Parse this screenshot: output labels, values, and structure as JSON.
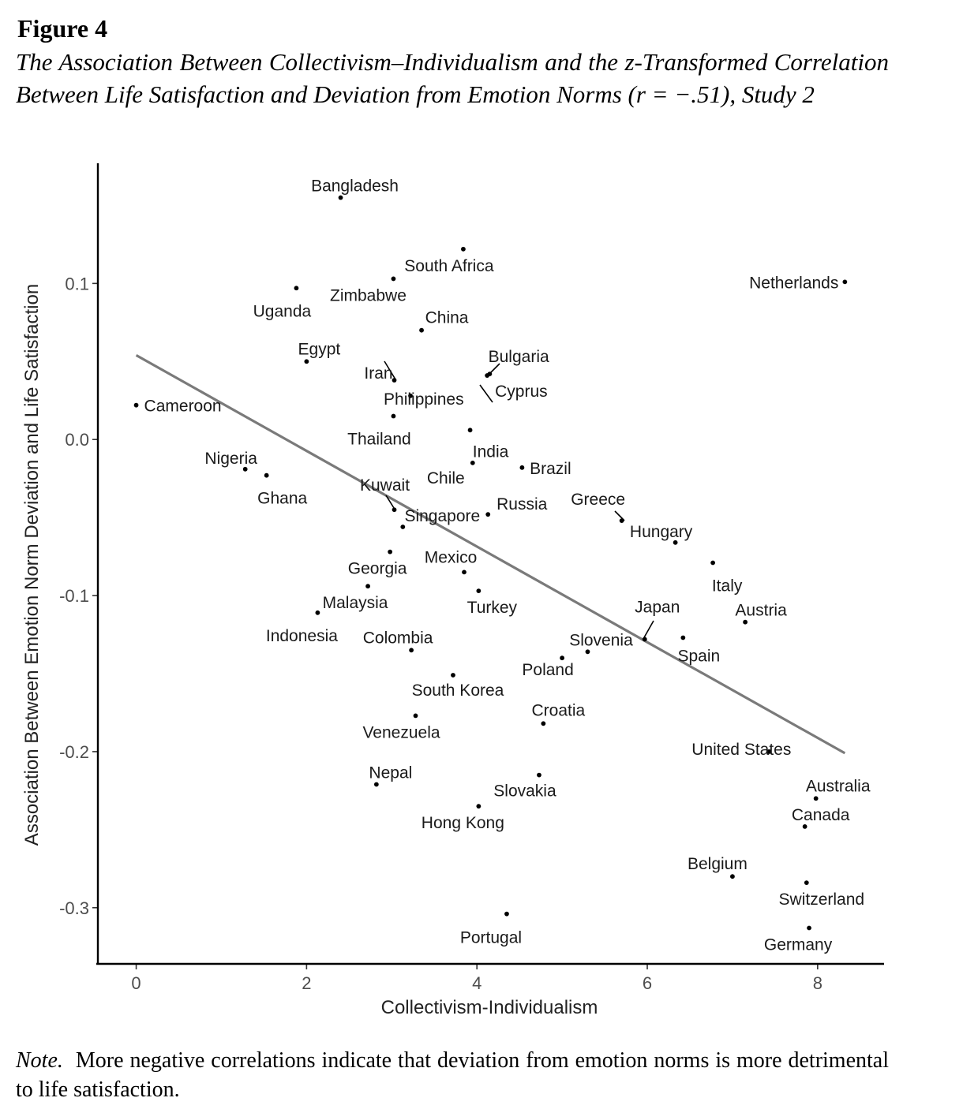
{
  "figure": {
    "label": "Figure 4",
    "caption": "The Association Between Collectivism–Individualism and the z-Transformed Correlation Between Life Satisfaction and Deviation from Emotion Norms (r = −.51), Study 2"
  },
  "note": {
    "lead": "Note.",
    "text": "More negative correlations indicate that deviation from emotion norms is more detrimental to life satisfaction."
  },
  "chart_data": {
    "type": "scatter",
    "title": "",
    "xlabel": "Collectivism-Individualism",
    "ylabel": "Association Between Emotion Norm Deviation and Life Satisfaction",
    "xlim": [
      -0.45,
      8.78
    ],
    "ylim": [
      -0.336,
      0.177
    ],
    "xticks": [
      0,
      2,
      4,
      6,
      8
    ],
    "xtick_labels": [
      "0",
      "2",
      "4",
      "6",
      "8"
    ],
    "yticks": [
      0.1,
      0.0,
      -0.1,
      -0.2,
      -0.3
    ],
    "ytick_labels": [
      "0.1",
      "0.0",
      "-0.1",
      "-0.2",
      "-0.3"
    ],
    "grid": false,
    "regression_line": {
      "x": [
        0.0,
        8.32
      ],
      "y": [
        0.054,
        -0.201
      ]
    },
    "points": [
      {
        "name": "Bangladesh",
        "x": 2.4,
        "y": 0.155
      },
      {
        "name": "South Africa",
        "x": 3.84,
        "y": 0.122
      },
      {
        "name": "Uganda",
        "x": 1.88,
        "y": 0.097
      },
      {
        "name": "Zimbabwe",
        "x": 3.02,
        "y": 0.103
      },
      {
        "name": "Netherlands",
        "x": 8.32,
        "y": 0.101
      },
      {
        "name": "China",
        "x": 3.35,
        "y": 0.07
      },
      {
        "name": "Egypt",
        "x": 2.0,
        "y": 0.05
      },
      {
        "name": "Iran",
        "x": 3.03,
        "y": 0.038
      },
      {
        "name": "Bulgaria",
        "x": 4.12,
        "y": 0.041
      },
      {
        "name": "Philippines",
        "x": 3.22,
        "y": 0.028
      },
      {
        "name": "Cyprus",
        "x": 4.15,
        "y": 0.042
      },
      {
        "name": "Cameroon",
        "x": 0.0,
        "y": 0.022
      },
      {
        "name": "Thailand",
        "x": 3.02,
        "y": 0.015
      },
      {
        "name": "India",
        "x": 3.92,
        "y": 0.006
      },
      {
        "name": "Nigeria",
        "x": 1.28,
        "y": -0.019
      },
      {
        "name": "Ghana",
        "x": 1.53,
        "y": -0.023
      },
      {
        "name": "Chile",
        "x": 3.95,
        "y": -0.015
      },
      {
        "name": "Brazil",
        "x": 4.53,
        "y": -0.018
      },
      {
        "name": "Kuwait",
        "x": 3.03,
        "y": -0.045
      },
      {
        "name": "Singapore",
        "x": 3.13,
        "y": -0.056
      },
      {
        "name": "Russia",
        "x": 4.13,
        "y": -0.048
      },
      {
        "name": "Greece",
        "x": 5.7,
        "y": -0.052
      },
      {
        "name": "Hungary",
        "x": 6.33,
        "y": -0.066
      },
      {
        "name": "Georgia",
        "x": 2.98,
        "y": -0.072
      },
      {
        "name": "Mexico",
        "x": 3.85,
        "y": -0.085
      },
      {
        "name": "Malaysia",
        "x": 2.72,
        "y": -0.094
      },
      {
        "name": "Turkey",
        "x": 4.02,
        "y": -0.097
      },
      {
        "name": "Italy",
        "x": 6.77,
        "y": -0.079
      },
      {
        "name": "Indonesia",
        "x": 2.13,
        "y": -0.111
      },
      {
        "name": "Austria",
        "x": 7.15,
        "y": -0.117
      },
      {
        "name": "Japan",
        "x": 5.97,
        "y": -0.128
      },
      {
        "name": "Spain",
        "x": 6.42,
        "y": -0.127
      },
      {
        "name": "Colombia",
        "x": 3.23,
        "y": -0.135
      },
      {
        "name": "Slovenia",
        "x": 5.3,
        "y": -0.136
      },
      {
        "name": "Poland",
        "x": 5.0,
        "y": -0.14
      },
      {
        "name": "South Korea",
        "x": 3.72,
        "y": -0.151
      },
      {
        "name": "Venezuela",
        "x": 3.28,
        "y": -0.177
      },
      {
        "name": "Croatia",
        "x": 4.78,
        "y": -0.182
      },
      {
        "name": "United States",
        "x": 7.43,
        "y": -0.2
      },
      {
        "name": "Nepal",
        "x": 2.82,
        "y": -0.221
      },
      {
        "name": "Slovakia",
        "x": 4.73,
        "y": -0.215
      },
      {
        "name": "Australia",
        "x": 7.98,
        "y": -0.23
      },
      {
        "name": "Hong Kong",
        "x": 4.02,
        "y": -0.235
      },
      {
        "name": "Canada",
        "x": 7.85,
        "y": -0.248
      },
      {
        "name": "Belgium",
        "x": 7.0,
        "y": -0.28
      },
      {
        "name": "Switzerland",
        "x": 7.87,
        "y": -0.284
      },
      {
        "name": "Portugal",
        "x": 4.35,
        "y": -0.304
      },
      {
        "name": "Germany",
        "x": 7.9,
        "y": -0.313
      }
    ]
  }
}
